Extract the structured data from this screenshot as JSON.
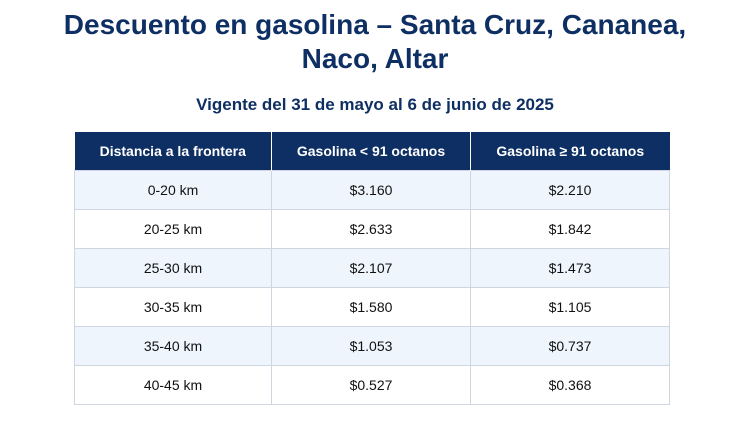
{
  "title": "Descuento en gasolina – Santa Cruz, Cananea,\nNaco, Altar",
  "subtitle": "Vigente del 31 de mayo al 6 de junio de 2025",
  "table": {
    "headers": [
      "Distancia a la frontera",
      "Gasolina < 91 octanos",
      "Gasolina ≥ 91 octanos"
    ],
    "rows": [
      [
        "0-20 km",
        "$3.160",
        "$2.210"
      ],
      [
        "20-25 km",
        "$2.633",
        "$1.842"
      ],
      [
        "25-30 km",
        "$2.107",
        "$1.473"
      ],
      [
        "30-35 km",
        "$1.580",
        "$1.105"
      ],
      [
        "35-40 km",
        "$1.053",
        "$0.737"
      ],
      [
        "40-45 km",
        "$0.527",
        "$0.368"
      ]
    ]
  },
  "colors": {
    "header_bg": "#0e2f63",
    "title_text": "#0e2f63",
    "row_alt_bg": "#eef5fd",
    "border": "#cfd6df"
  }
}
